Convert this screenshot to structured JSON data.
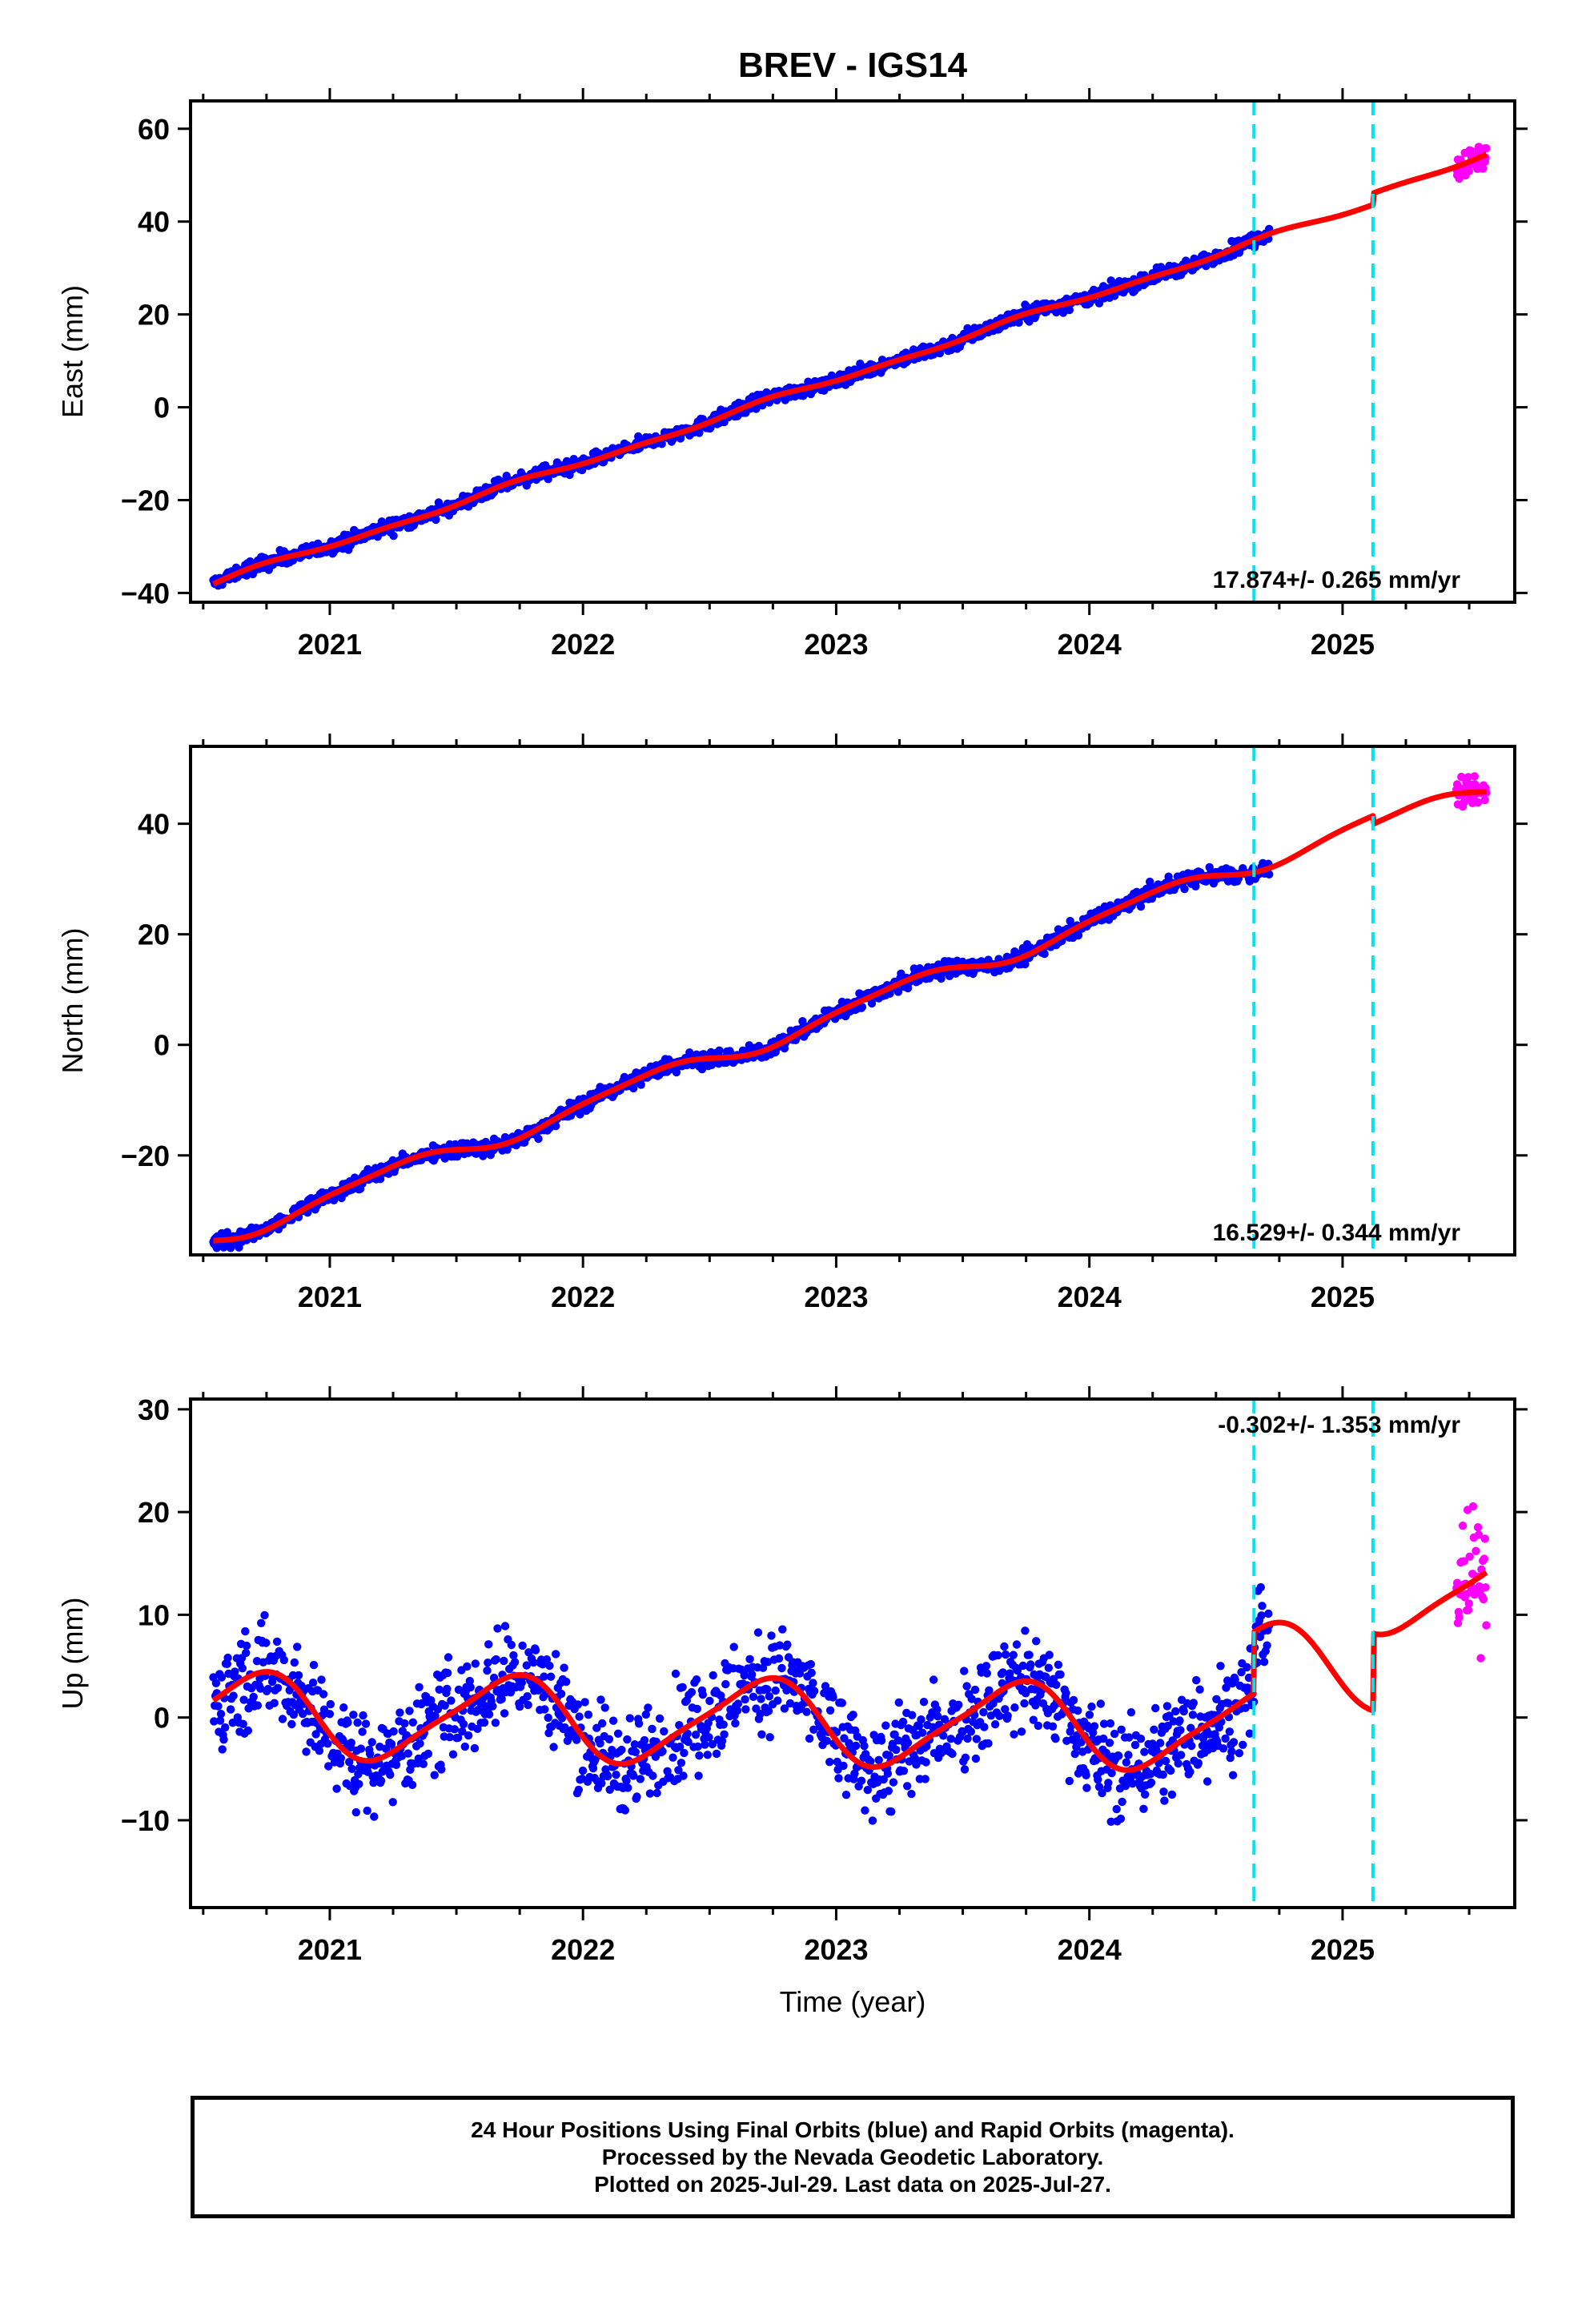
{
  "chart_data": {
    "type": "scatter",
    "title": "BREV - IGS14",
    "xlabel": "Time (year)",
    "xlim": [
      2020.45,
      2025.68
    ],
    "x_ticks": [
      2021,
      2022,
      2023,
      2024,
      2025
    ],
    "data_start": 2020.54,
    "final_end": 2024.71,
    "rapid_start": 2025.45,
    "last_data": 2025.57,
    "model_end": 2025.57,
    "series_colors": {
      "final": "#0000ff",
      "rapid": "#ff00ff",
      "model": "#ff0000",
      "steps": "#00e5ee"
    },
    "vertical_lines": [
      2024.65,
      2025.12
    ],
    "panels": [
      {
        "key": "east",
        "ylabel": "East (mm)",
        "ylim": [
          -42,
          66
        ],
        "y_ticks": [
          -40,
          -20,
          0,
          20,
          40,
          60
        ],
        "rate_text": "17.874+/- 0.265 mm/yr",
        "rate_position": "bottom-right",
        "velocity": 17.87,
        "intercept_at_2023": 6.0,
        "annual_amp": 0.5,
        "annual_phase": 0.5,
        "semi_amp": 0.3,
        "semi_phase": 0.1,
        "step_at": 2025.12,
        "step_size": 2.5,
        "noise": 1.4,
        "rapid_noise": 3.0
      },
      {
        "key": "north",
        "ylabel": "North (mm)",
        "ylim": [
          -38,
          54
        ],
        "y_ticks": [
          -20,
          0,
          20,
          40
        ],
        "rate_text": "16.529+/- 0.344 mm/yr",
        "rate_position": "bottom-right",
        "velocity": 16.53,
        "intercept_at_2023": 5.6,
        "annual_amp": 1.6,
        "annual_phase": 0.0,
        "semi_amp": 0.4,
        "semi_phase": 0.3,
        "step_at": 2025.12,
        "step_size": -1.5,
        "noise": 1.3,
        "rapid_noise": 2.0
      },
      {
        "key": "up",
        "ylabel": "Up (mm)",
        "ylim": [
          -18.5,
          31
        ],
        "y_ticks": [
          -10,
          0,
          10,
          20,
          30
        ],
        "rate_text": "-0.302+/- 1.353 mm/yr",
        "rate_position": "top-right",
        "velocity": -0.3,
        "intercept_at_2023": -0.5,
        "annual_amp": 4.0,
        "annual_phase": 0.45,
        "semi_amp": 0.8,
        "semi_phase": 0.2,
        "step_at": 2024.65,
        "step_size": 6.0,
        "step2_at": 2025.12,
        "step2_size": 7.5,
        "noise": 4.5,
        "rapid_noise": 5.5
      }
    ]
  },
  "footer": {
    "line1": "24 Hour Positions Using Final Orbits (blue) and Rapid Orbits (magenta).",
    "line2": "Processed by the Nevada Geodetic Laboratory.",
    "line3": "Plotted on 2025-Jul-29. Last data on 2025-Jul-27."
  }
}
